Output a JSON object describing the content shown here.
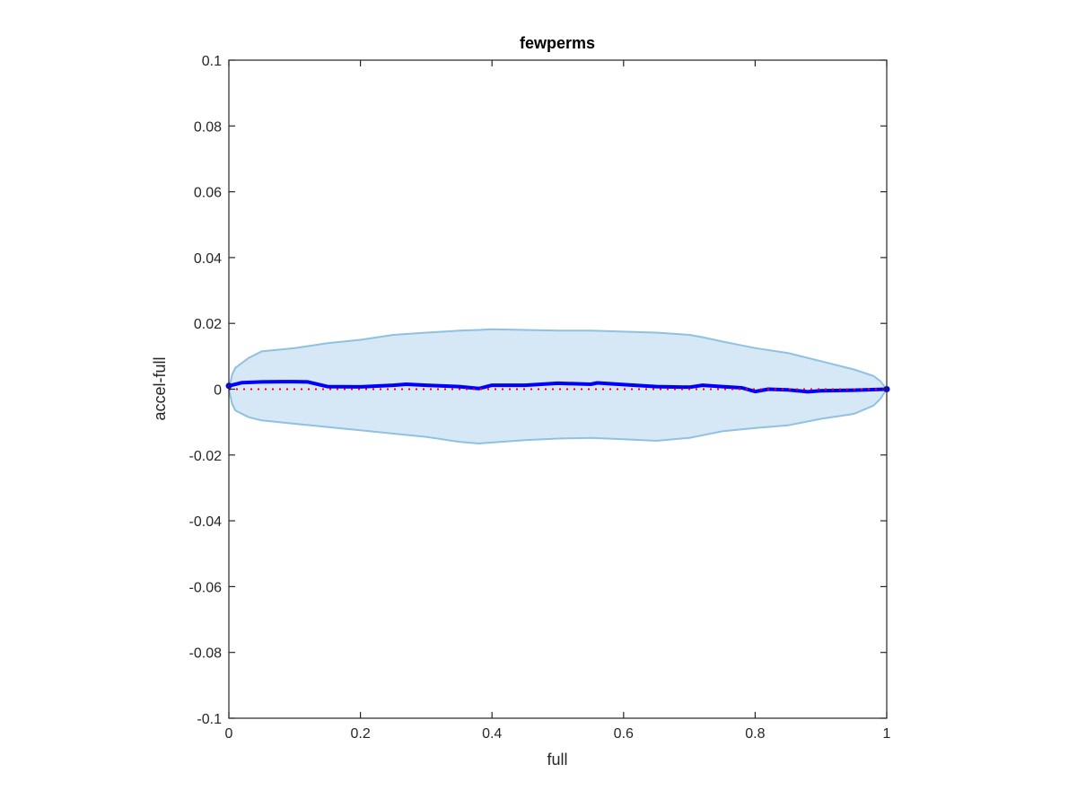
{
  "chart_data": {
    "type": "line",
    "title": "fewperms",
    "xlabel": "full",
    "ylabel": "accel-full",
    "xlim": [
      0,
      1
    ],
    "ylim": [
      -0.1,
      0.1
    ],
    "xticks": [
      0,
      0.2,
      0.4,
      0.6,
      0.8,
      1
    ],
    "xtick_labels": [
      "0",
      "0.2",
      "0.4",
      "0.6",
      "0.8",
      "1"
    ],
    "yticks": [
      0.1,
      0.08,
      0.06,
      0.04,
      0.02,
      0,
      -0.02,
      -0.04,
      -0.06,
      -0.08,
      -0.1
    ],
    "ytick_labels": [
      "0.1",
      "0.08",
      "0.06",
      "0.04",
      "0.02",
      "0",
      "-0.02",
      "-0.04",
      "-0.06",
      "-0.08",
      "-0.1"
    ],
    "grid": false,
    "series": [
      {
        "role": "mean",
        "color": "#0000ff",
        "x": [
          0,
          0.02,
          0.05,
          0.08,
          0.1,
          0.12,
          0.15,
          0.2,
          0.25,
          0.27,
          0.3,
          0.35,
          0.38,
          0.4,
          0.45,
          0.5,
          0.55,
          0.56,
          0.6,
          0.65,
          0.7,
          0.72,
          0.75,
          0.78,
          0.8,
          0.82,
          0.85,
          0.88,
          0.9,
          0.95,
          1
        ],
        "y": [
          0.001,
          0.002,
          0.0022,
          0.0023,
          0.0023,
          0.0022,
          0.0008,
          0.0007,
          0.0012,
          0.0015,
          0.0012,
          0.0008,
          0.0002,
          0.0012,
          0.0012,
          0.0018,
          0.0015,
          0.0019,
          0.0014,
          0.0008,
          0.0006,
          0.0012,
          0.0008,
          0.0004,
          -0.0007,
          0,
          -0.0002,
          -0.0008,
          -0.0005,
          -0.0003,
          0
        ]
      },
      {
        "role": "reference",
        "color": "#ff0000",
        "x": [
          0,
          1
        ],
        "y": [
          0,
          0
        ]
      }
    ],
    "band": {
      "fill": "#d6e8f5",
      "edge": "#8fc1e0",
      "x": [
        0,
        0.005,
        0.01,
        0.03,
        0.05,
        0.1,
        0.15,
        0.2,
        0.25,
        0.3,
        0.35,
        0.38,
        0.4,
        0.45,
        0.5,
        0.55,
        0.6,
        0.65,
        0.7,
        0.72,
        0.75,
        0.8,
        0.85,
        0.9,
        0.95,
        0.98,
        0.99,
        1
      ],
      "upper": [
        0,
        0.0045,
        0.0065,
        0.0095,
        0.0115,
        0.0125,
        0.014,
        0.015,
        0.0165,
        0.0172,
        0.0178,
        0.018,
        0.0182,
        0.018,
        0.0178,
        0.0178,
        0.0175,
        0.0172,
        0.0165,
        0.0158,
        0.0145,
        0.0125,
        0.011,
        0.0085,
        0.006,
        0.004,
        0.0025,
        0
      ],
      "lower": [
        0,
        -0.0045,
        -0.0065,
        -0.0085,
        -0.0095,
        -0.0105,
        -0.0115,
        -0.0125,
        -0.0135,
        -0.0145,
        -0.016,
        -0.0165,
        -0.0162,
        -0.0155,
        -0.015,
        -0.0148,
        -0.0152,
        -0.0157,
        -0.0148,
        -0.014,
        -0.0128,
        -0.0118,
        -0.011,
        -0.009,
        -0.0075,
        -0.005,
        -0.003,
        0
      ]
    }
  }
}
